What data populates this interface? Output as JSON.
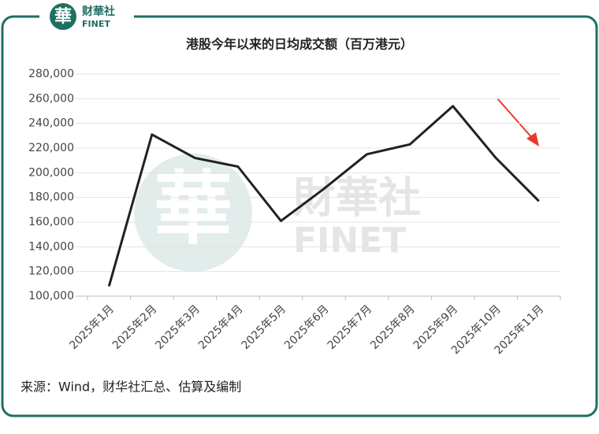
{
  "brand": {
    "mark": "華",
    "name": "财華社",
    "sub": "FINET"
  },
  "watermark": {
    "name": "財華社",
    "sub": "FINET",
    "mark": "華"
  },
  "chart_data": {
    "type": "line",
    "title": "港股今年以来的日均成交额（百万港元）",
    "categories": [
      "2025年1月",
      "2025年2月",
      "2025年3月",
      "2025年4月",
      "2025年5月",
      "2025年6月",
      "2025年7月",
      "2025年8月",
      "2025年9月",
      "2025年10月",
      "2025年11月"
    ],
    "series": [
      {
        "name": "日均成交额",
        "color": "#222222",
        "values": [
          108000,
          231000,
          212000,
          205000,
          161000,
          187000,
          215000,
          223000,
          254000,
          212000,
          177000
        ]
      }
    ],
    "ylim": [
      100000,
      280000
    ],
    "yticks": [
      {
        "value": 100000,
        "label": "100,000"
      },
      {
        "value": 120000,
        "label": "120,000"
      },
      {
        "value": 140000,
        "label": "140,000"
      },
      {
        "value": 160000,
        "label": "160,000"
      },
      {
        "value": 180000,
        "label": "180,000"
      },
      {
        "value": 200000,
        "label": "200,000"
      },
      {
        "value": 220000,
        "label": "220,000"
      },
      {
        "value": 240000,
        "label": "240,000"
      },
      {
        "value": 260000,
        "label": "260,000"
      },
      {
        "value": 280000,
        "label": "280,000"
      }
    ],
    "grid": true,
    "source": "来源：Wind，财华社汇总、估算及编制"
  }
}
